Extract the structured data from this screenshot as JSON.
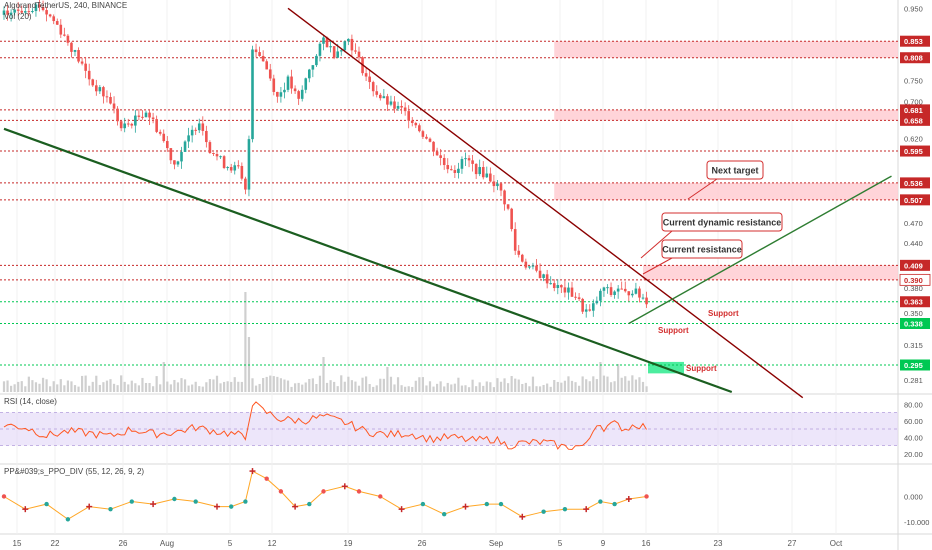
{
  "header": {
    "symbol_line": "AlgorandTetherUS, 240, BINANCE",
    "volume_label": "Vol (20)"
  },
  "rsi_panel": {
    "title": "RSI (14, close)",
    "ticks": [
      "80.00",
      "60.00",
      "40.00",
      "20.00"
    ]
  },
  "ppo_panel": {
    "title": "PP&#039;s_PPO_DIV (55, 12, 26, 9, 2)",
    "ticks": [
      "0.000",
      "-10.000"
    ]
  },
  "colors": {
    "candle_up": "#26a69a",
    "candle_down": "#ef5350",
    "level_line": "#c62828",
    "support_line": "#00c853",
    "dynamic_resistance": "#8b0000",
    "lower_trendline": "#1b5e20",
    "support_trendline": "#2e7d32",
    "zone_fill": "#ffcdd2",
    "rsi_line": "#ff5722",
    "rsi_band": "#e1d5f7",
    "ppo_line": "#ffa726",
    "volume_bar": "#cfcfcf",
    "annotation_text": "#d32f2f"
  },
  "chart_data": {
    "type": "candlestick",
    "title": "AlgorandTetherUS, 240, BINANCE",
    "price_axis": {
      "ylim": [
        0.27,
        0.97
      ],
      "scale": "log",
      "ticks": [
        "0.950",
        "0.853",
        "0.808",
        "0.750",
        "0.700",
        "0.681",
        "0.658",
        "0.658",
        "0.620",
        "0.595",
        "0.536",
        "0.507",
        "0.507",
        "0.470",
        "0.440",
        "0.409",
        "0.390",
        "0.380",
        "0.363",
        "0.350",
        "0.338",
        "0.315",
        "0.295",
        "0.281"
      ],
      "grid": true
    },
    "time_axis": {
      "ticks": [
        "15",
        "22",
        "26",
        "Aug",
        "5",
        "12",
        "19",
        "26",
        "Sep",
        "5",
        "9",
        "16",
        "23",
        "27",
        "Oct"
      ]
    },
    "price_path": [
      [
        0,
        0.93
      ],
      [
        6,
        0.95
      ],
      [
        10,
        0.96
      ],
      [
        15,
        0.9
      ],
      [
        20,
        0.82
      ],
      [
        25,
        0.74
      ],
      [
        30,
        0.7
      ],
      [
        33,
        0.64
      ],
      [
        37,
        0.66
      ],
      [
        40,
        0.68
      ],
      [
        44,
        0.63
      ],
      [
        48,
        0.57
      ],
      [
        52,
        0.62
      ],
      [
        55,
        0.66
      ],
      [
        58,
        0.6
      ],
      [
        62,
        0.57
      ],
      [
        66,
        0.56
      ],
      [
        68,
        0.52
      ],
      [
        69,
        0.62
      ],
      [
        70,
        0.84
      ],
      [
        72,
        0.82
      ],
      [
        74,
        0.78
      ],
      [
        77,
        0.71
      ],
      [
        80,
        0.75
      ],
      [
        83,
        0.7
      ],
      [
        86,
        0.78
      ],
      [
        88,
        0.81
      ],
      [
        90,
        0.86
      ],
      [
        93,
        0.82
      ],
      [
        95,
        0.84
      ],
      [
        97,
        0.86
      ],
      [
        100,
        0.8
      ],
      [
        103,
        0.74
      ],
      [
        106,
        0.71
      ],
      [
        109,
        0.69
      ],
      [
        112,
        0.68
      ],
      [
        115,
        0.66
      ],
      [
        118,
        0.63
      ],
      [
        121,
        0.6
      ],
      [
        124,
        0.57
      ],
      [
        127,
        0.56
      ],
      [
        130,
        0.58
      ],
      [
        133,
        0.56
      ],
      [
        136,
        0.55
      ],
      [
        139,
        0.53
      ],
      [
        140,
        0.52
      ],
      [
        142,
        0.49
      ],
      [
        144,
        0.43
      ],
      [
        147,
        0.41
      ],
      [
        150,
        0.4
      ],
      [
        153,
        0.39
      ],
      [
        156,
        0.38
      ],
      [
        159,
        0.375
      ],
      [
        161,
        0.37
      ],
      [
        163,
        0.355
      ],
      [
        165,
        0.35
      ],
      [
        167,
        0.365
      ],
      [
        169,
        0.38
      ],
      [
        171,
        0.372
      ],
      [
        173,
        0.38
      ],
      [
        175,
        0.372
      ],
      [
        177,
        0.378
      ],
      [
        179,
        0.37
      ],
      [
        181,
        0.365
      ]
    ],
    "volume": {
      "base_level": 0.12,
      "spikes": [
        [
          45,
          0.3
        ],
        [
          68,
          1.0
        ],
        [
          69,
          0.55
        ],
        [
          90,
          0.35
        ],
        [
          108,
          0.25
        ],
        [
          168,
          0.3
        ],
        [
          173,
          0.28
        ]
      ]
    },
    "horizontal_levels": [
      {
        "label": "0.853",
        "style": "dotted-red",
        "box": "red"
      },
      {
        "label": "0.808",
        "style": "dotted-red",
        "box": "red"
      },
      {
        "label": "0.681",
        "style": "dotted-red",
        "box": "red"
      },
      {
        "label": "0.658",
        "style": "dotted-red",
        "box": "red"
      },
      {
        "label": "0.595",
        "style": "dotted-red",
        "box": "red"
      },
      {
        "label": "0.536",
        "style": "dotted-red",
        "box": "red"
      },
      {
        "label": "0.507",
        "style": "dotted-red",
        "box": "red"
      },
      {
        "label": "0.409",
        "style": "dotted-red",
        "box": "red"
      },
      {
        "label": "0.390",
        "style": "dotted-red",
        "box": "white"
      },
      {
        "label": "0.363",
        "style": "dotted-green",
        "box": "red"
      },
      {
        "label": "0.338",
        "style": "dotted-green",
        "box": "green"
      },
      {
        "label": "0.295",
        "style": "dotted-green",
        "box": "green"
      }
    ],
    "zones": [
      {
        "from": 0.808,
        "to": 0.853,
        "start_x": 155
      },
      {
        "from": 0.658,
        "to": 0.681,
        "start_x": 155
      },
      {
        "from": 0.507,
        "to": 0.536,
        "start_x": 155
      },
      {
        "from": 0.39,
        "to": 0.409,
        "start_x": 180
      }
    ],
    "trendlines": [
      {
        "name": "dynamic_resistance",
        "from": [
          80,
          0.95
        ],
        "to": [
          225,
          0.265
        ]
      },
      {
        "name": "lower_trendline",
        "from": [
          0,
          0.64
        ],
        "to": [
          205,
          0.27
        ]
      },
      {
        "name": "support_trendline",
        "from": [
          176,
          0.338
        ],
        "to": [
          250,
          0.548
        ]
      }
    ],
    "annotations": [
      {
        "text": "Next target",
        "type": "callout"
      },
      {
        "text": "Current dynamic resistance",
        "type": "callout"
      },
      {
        "text": "Current resistance",
        "type": "callout"
      },
      {
        "text": "Support",
        "type": "label"
      },
      {
        "text": "Support",
        "type": "label"
      },
      {
        "text": "Support",
        "type": "label"
      }
    ],
    "rsi": {
      "ylim": [
        10,
        90
      ],
      "band": [
        30,
        70
      ],
      "values": [
        [
          0,
          55
        ],
        [
          6,
          52
        ],
        [
          12,
          42
        ],
        [
          18,
          47
        ],
        [
          24,
          45
        ],
        [
          30,
          41
        ],
        [
          36,
          50
        ],
        [
          42,
          44
        ],
        [
          48,
          46
        ],
        [
          54,
          52
        ],
        [
          60,
          47
        ],
        [
          66,
          43
        ],
        [
          68,
          38
        ],
        [
          69,
          62
        ],
        [
          70,
          82
        ],
        [
          73,
          72
        ],
        [
          78,
          62
        ],
        [
          84,
          60
        ],
        [
          90,
          65
        ],
        [
          96,
          58
        ],
        [
          102,
          47
        ],
        [
          108,
          43
        ],
        [
          114,
          45
        ],
        [
          120,
          38
        ],
        [
          126,
          40
        ],
        [
          132,
          36
        ],
        [
          138,
          38
        ],
        [
          142,
          30
        ],
        [
          146,
          33
        ],
        [
          152,
          34
        ],
        [
          158,
          28
        ],
        [
          164,
          30
        ],
        [
          167,
          58
        ],
        [
          169,
          52
        ],
        [
          172,
          56
        ],
        [
          175,
          50
        ],
        [
          178,
          56
        ],
        [
          181,
          52
        ]
      ]
    },
    "ppo": {
      "ylim": [
        -14,
        12
      ],
      "values": [
        [
          0,
          0
        ],
        [
          6,
          -5
        ],
        [
          12,
          -3
        ],
        [
          18,
          -9
        ],
        [
          24,
          -4
        ],
        [
          30,
          -5
        ],
        [
          36,
          -2
        ],
        [
          42,
          -3
        ],
        [
          48,
          -1
        ],
        [
          54,
          -2
        ],
        [
          60,
          -4
        ],
        [
          64,
          -4
        ],
        [
          68,
          -2
        ],
        [
          70,
          10
        ],
        [
          74,
          7
        ],
        [
          78,
          2
        ],
        [
          82,
          -4
        ],
        [
          86,
          -3
        ],
        [
          90,
          2
        ],
        [
          96,
          4
        ],
        [
          100,
          2
        ],
        [
          106,
          0
        ],
        [
          112,
          -5
        ],
        [
          118,
          -3
        ],
        [
          124,
          -7
        ],
        [
          130,
          -4
        ],
        [
          136,
          -3
        ],
        [
          140,
          -3
        ],
        [
          146,
          -8
        ],
        [
          152,
          -6
        ],
        [
          158,
          -5
        ],
        [
          164,
          -5
        ],
        [
          168,
          -2
        ],
        [
          172,
          -3
        ],
        [
          176,
          -1
        ],
        [
          181,
          0
        ]
      ]
    }
  }
}
